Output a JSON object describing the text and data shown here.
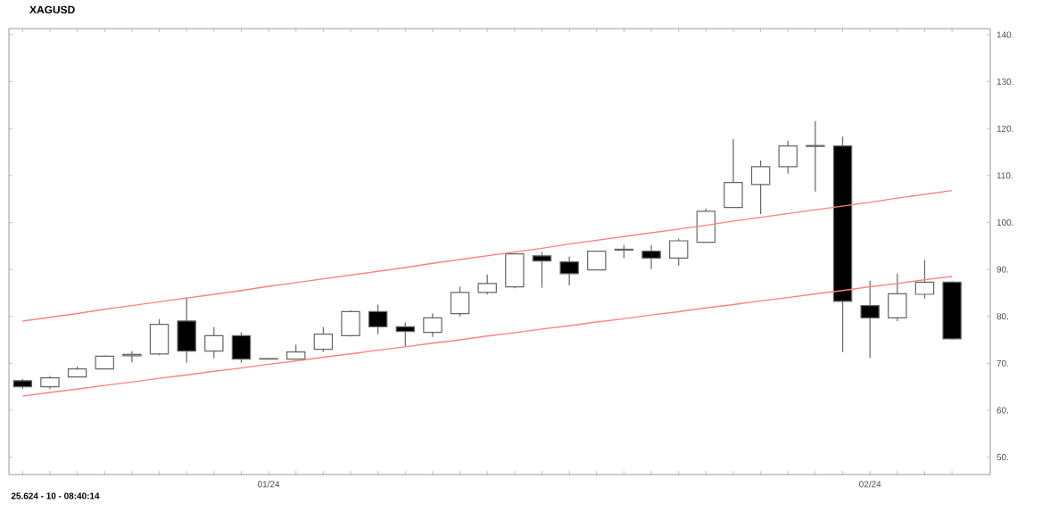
{
  "chart_data": {
    "type": "candlestick",
    "title": "XAGUSD",
    "categories": [
      null,
      null,
      null,
      null,
      null,
      null,
      null,
      null,
      null,
      "01/24",
      null,
      null,
      null,
      null,
      null,
      null,
      null,
      null,
      null,
      null,
      null,
      null,
      null,
      null,
      null,
      null,
      null,
      null,
      null,
      null,
      null,
      "02/24",
      null,
      null,
      null
    ],
    "ohlc": [
      [
        66.3,
        66.7,
        64.5,
        65.0
      ],
      [
        65.0,
        67.3,
        64.5,
        66.9
      ],
      [
        67.1,
        69.3,
        67.1,
        68.8
      ],
      [
        68.8,
        71.7,
        68.8,
        71.5
      ],
      [
        71.6,
        72.6,
        70.2,
        71.9
      ],
      [
        72.0,
        79.4,
        71.7,
        78.3
      ],
      [
        79.0,
        84.0,
        70.1,
        72.6
      ],
      [
        72.6,
        77.7,
        71.1,
        75.9
      ],
      [
        75.9,
        76.6,
        70.1,
        70.9
      ],
      [
        70.9,
        71.1,
        70.8,
        71.0
      ],
      [
        70.9,
        74.0,
        70.9,
        72.4
      ],
      [
        73.0,
        77.7,
        72.4,
        76.2
      ],
      [
        75.9,
        81.3,
        75.7,
        81.0
      ],
      [
        81.0,
        82.5,
        76.2,
        77.8
      ],
      [
        77.8,
        78.7,
        73.6,
        76.8
      ],
      [
        76.6,
        80.6,
        75.6,
        79.7
      ],
      [
        80.6,
        86.3,
        80.0,
        85.1
      ],
      [
        85.1,
        88.9,
        84.7,
        87.0
      ],
      [
        86.3,
        93.5,
        86.0,
        93.3
      ],
      [
        92.9,
        93.7,
        86.1,
        91.8
      ],
      [
        91.6,
        92.7,
        86.6,
        89.1
      ],
      [
        89.9,
        94.0,
        89.9,
        93.9
      ],
      [
        94.1,
        95.2,
        92.4,
        94.3
      ],
      [
        93.9,
        95.2,
        90.1,
        92.4
      ],
      [
        92.4,
        96.5,
        90.8,
        96.1
      ],
      [
        95.8,
        103.0,
        95.8,
        102.4
      ],
      [
        103.2,
        117.8,
        103.2,
        108.5
      ],
      [
        108.1,
        113.2,
        101.8,
        111.9
      ],
      [
        111.9,
        117.4,
        110.4,
        116.3
      ],
      [
        116.2,
        121.6,
        106.6,
        116.4
      ],
      [
        116.3,
        118.3,
        72.4,
        83.2
      ],
      [
        82.3,
        87.6,
        71.1,
        79.7
      ],
      [
        79.7,
        89.1,
        79.0,
        84.8
      ],
      [
        84.7,
        92.0,
        83.8,
        87.3
      ],
      [
        87.3,
        87.5,
        75.0,
        75.2
      ]
    ],
    "series": [
      {
        "type": "line",
        "values": [
          79.0,
          79.8,
          80.6,
          81.5,
          82.3,
          83.1,
          83.9,
          84.7,
          85.5,
          86.4,
          87.2,
          88.0,
          88.8,
          89.6,
          90.4,
          91.3,
          92.1,
          92.9,
          93.7,
          94.5,
          95.4,
          96.2,
          97.0,
          97.8,
          98.6,
          99.4,
          100.3,
          101.1,
          101.9,
          102.7,
          103.5,
          104.3,
          105.2,
          106.0,
          106.8
        ],
        "color": "#ff8080"
      },
      {
        "type": "line",
        "values": [
          63.0,
          63.8,
          64.5,
          65.3,
          66.0,
          66.8,
          67.5,
          68.3,
          69.0,
          69.8,
          70.5,
          71.3,
          72.0,
          72.8,
          73.5,
          74.3,
          75.0,
          75.8,
          76.5,
          77.3,
          78.0,
          78.8,
          79.5,
          80.3,
          81.0,
          81.8,
          82.5,
          83.3,
          84.0,
          84.8,
          85.5,
          86.3,
          87.0,
          87.8,
          88.5
        ],
        "color": "#ff8080"
      }
    ],
    "ylim": [
      46.3,
      141.3
    ],
    "yticks": [
      {
        "value": 50,
        "label": "50."
      },
      {
        "value": 60,
        "label": "60."
      },
      {
        "value": 70,
        "label": "70."
      },
      {
        "value": 80,
        "label": "80."
      },
      {
        "value": 90,
        "label": "90."
      },
      {
        "value": 100,
        "label": "100."
      },
      {
        "value": 110,
        "label": "110."
      },
      {
        "value": 120,
        "label": "120."
      },
      {
        "value": 130,
        "label": "130."
      },
      {
        "value": 140,
        "label": "140."
      }
    ],
    "annotations": [
      "25.624 - 10 - 08:40:14"
    ],
    "grid": false
  }
}
